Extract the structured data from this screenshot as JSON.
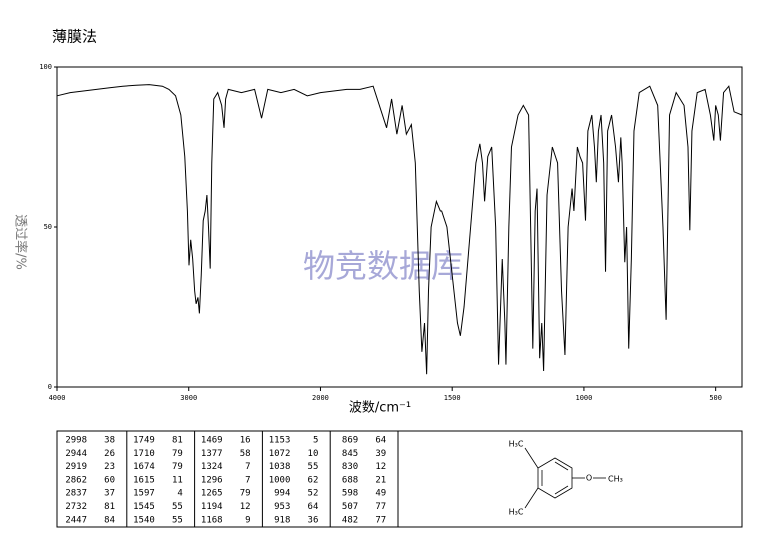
{
  "chart_data": {
    "type": "line",
    "title": "薄膜法",
    "xlabel": "波数/cm⁻¹",
    "ylabel": "透过率/%",
    "watermark": "物竞数据库",
    "color": "#000000",
    "xlim": [
      4000,
      400
    ],
    "xticks": [
      4000,
      3000,
      2000,
      1500,
      1000,
      500
    ],
    "ylim": [
      0,
      100
    ],
    "yticks": [
      0,
      50,
      100
    ],
    "x": [
      4000,
      3900,
      3800,
      3700,
      3600,
      3500,
      3400,
      3300,
      3200,
      3150,
      3100,
      3060,
      3030,
      3010,
      2998,
      2985,
      2970,
      2955,
      2944,
      2930,
      2919,
      2905,
      2890,
      2875,
      2862,
      2850,
      2837,
      2825,
      2810,
      2780,
      2750,
      2732,
      2720,
      2700,
      2600,
      2500,
      2447,
      2400,
      2300,
      2200,
      2100,
      2000,
      1900,
      1850,
      1800,
      1749,
      1730,
      1710,
      1690,
      1674,
      1655,
      1640,
      1625,
      1615,
      1605,
      1597,
      1590,
      1580,
      1560,
      1545,
      1540,
      1520,
      1500,
      1480,
      1469,
      1455,
      1430,
      1410,
      1395,
      1385,
      1377,
      1365,
      1350,
      1335,
      1324,
      1310,
      1300,
      1296,
      1285,
      1275,
      1265,
      1250,
      1230,
      1210,
      1200,
      1194,
      1185,
      1178,
      1168,
      1160,
      1153,
      1140,
      1120,
      1100,
      1085,
      1072,
      1060,
      1045,
      1038,
      1025,
      1015,
      1005,
      1000,
      994,
      985,
      970,
      960,
      953,
      945,
      935,
      925,
      918,
      910,
      895,
      880,
      869,
      860,
      855,
      845,
      838,
      830,
      820,
      810,
      790,
      750,
      720,
      700,
      688,
      675,
      650,
      620,
      605,
      598,
      590,
      570,
      540,
      520,
      507,
      500,
      490,
      482,
      470,
      450,
      430,
      400
    ],
    "values": [
      91,
      92,
      92.5,
      93,
      93.5,
      94,
      94.3,
      94.5,
      94,
      93,
      91,
      85,
      72,
      55,
      38,
      46,
      40,
      30,
      26,
      28,
      23,
      35,
      52,
      55,
      60,
      50,
      37,
      70,
      90,
      92,
      88,
      81,
      90,
      93,
      92,
      93,
      84,
      93,
      92,
      93,
      91,
      92,
      93,
      93,
      94,
      81,
      90,
      79,
      88,
      79,
      82,
      70,
      30,
      11,
      20,
      4,
      30,
      50,
      58,
      55,
      55,
      50,
      35,
      20,
      16,
      25,
      50,
      70,
      76,
      70,
      58,
      72,
      75,
      50,
      7,
      40,
      20,
      7,
      50,
      75,
      79,
      85,
      88,
      85,
      40,
      12,
      55,
      62,
      9,
      20,
      5,
      60,
      75,
      70,
      30,
      10,
      50,
      62,
      55,
      75,
      72,
      70,
      62,
      52,
      80,
      85,
      75,
      64,
      80,
      85,
      70,
      36,
      80,
      85,
      75,
      64,
      78,
      70,
      39,
      50,
      12,
      40,
      80,
      92,
      94,
      88,
      50,
      21,
      85,
      92,
      88,
      75,
      49,
      80,
      92,
      93,
      85,
      77,
      88,
      85,
      77,
      92,
      94,
      86,
      85
    ]
  },
  "peak_table": {
    "columns": [
      [
        [
          2998,
          38
        ],
        [
          2944,
          26
        ],
        [
          2919,
          23
        ],
        [
          2862,
          60
        ],
        [
          2837,
          37
        ],
        [
          2732,
          81
        ],
        [
          2447,
          84
        ]
      ],
      [
        [
          1749,
          81
        ],
        [
          1710,
          79
        ],
        [
          1674,
          79
        ],
        [
          1615,
          11
        ],
        [
          1597,
          4
        ],
        [
          1545,
          55
        ],
        [
          1540,
          55
        ]
      ],
      [
        [
          1469,
          16
        ],
        [
          1377,
          58
        ],
        [
          1324,
          7
        ],
        [
          1296,
          7
        ],
        [
          1265,
          79
        ],
        [
          1194,
          12
        ],
        [
          1168,
          9
        ]
      ],
      [
        [
          1153,
          5
        ],
        [
          1072,
          10
        ],
        [
          1038,
          55
        ],
        [
          1000,
          62
        ],
        [
          994,
          52
        ],
        [
          953,
          64
        ],
        [
          918,
          36
        ]
      ],
      [
        [
          869,
          64
        ],
        [
          845,
          39
        ],
        [
          830,
          12
        ],
        [
          688,
          21
        ],
        [
          598,
          49
        ],
        [
          507,
          77
        ],
        [
          482,
          77
        ]
      ]
    ]
  },
  "structure": {
    "labels": [
      "H₃C",
      "O",
      "CH₃",
      "H₃C"
    ]
  }
}
